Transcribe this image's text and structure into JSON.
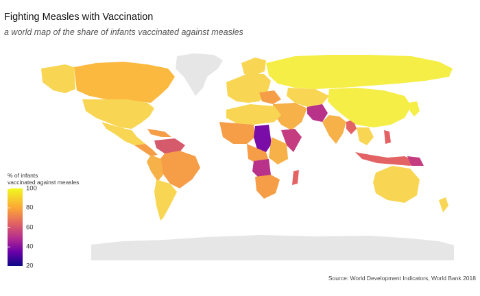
{
  "title": "Fighting Measles with Vaccination",
  "subtitle": "a world map of the share of infants vaccinated against measles",
  "legend": {
    "title_line1": "% of infants",
    "title_line2": "vaccinated against measles",
    "ticks": [
      "100",
      "80",
      "60",
      "40",
      "20"
    ],
    "tick_values": [
      100,
      80,
      60,
      40,
      20
    ],
    "range": [
      20,
      100
    ],
    "colors": {
      "low": "#0d0887",
      "q1": "#6a00a8",
      "mid": "#b12a90",
      "q3": "#e16462",
      "q4": "#fca636",
      "high": "#f0f921"
    }
  },
  "no_data_color": "#e6e6e6",
  "source": "Source: World Development Indicators, World Bank 2018"
}
